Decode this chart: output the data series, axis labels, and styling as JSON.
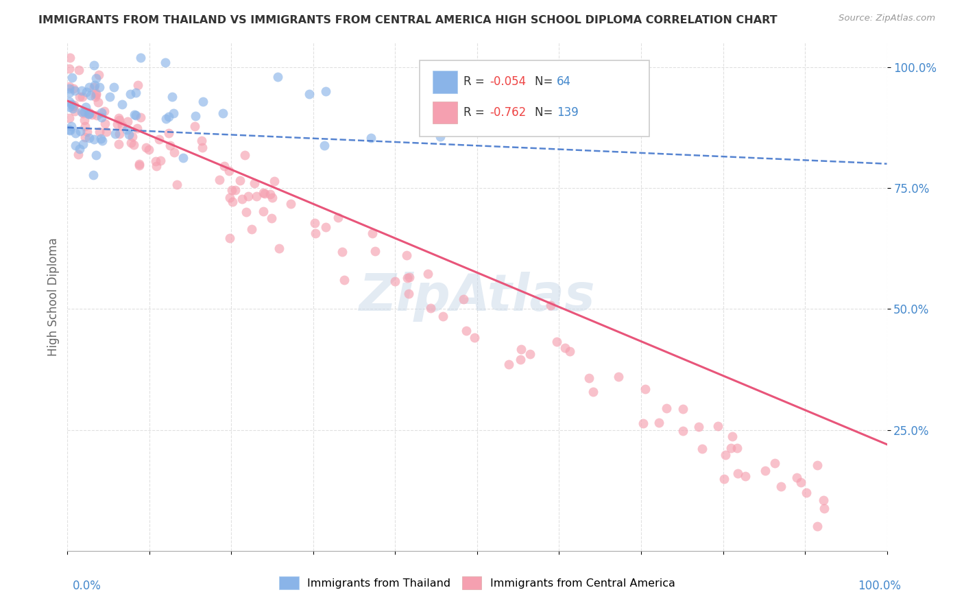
{
  "title": "IMMIGRANTS FROM THAILAND VS IMMIGRANTS FROM CENTRAL AMERICA HIGH SCHOOL DIPLOMA CORRELATION CHART",
  "source": "Source: ZipAtlas.com",
  "ylabel": "High School Diploma",
  "legend_r1": "R = -0.054",
  "legend_n1": "N=  64",
  "legend_r2": "R = -0.762",
  "legend_n2": "N= 139",
  "legend_label1": "Immigrants from Thailand",
  "legend_label2": "Immigrants from Central America",
  "blue_scatter_color": "#8AB4E8",
  "pink_scatter_color": "#F5A0B0",
  "blue_line_color": "#4477CC",
  "pink_line_color": "#E8557A",
  "ytick_color": "#4488CC",
  "xtick_color": "#4488CC",
  "r_color": "#EE4444",
  "n_color": "#4488CC",
  "background_color": "#FFFFFF",
  "grid_color": "#CCCCCC",
  "watermark_color": "#C8D8E8",
  "title_color": "#333333",
  "ylabel_color": "#666666",
  "source_color": "#999999",
  "scatter_size": 100,
  "scatter_alpha": 0.65
}
